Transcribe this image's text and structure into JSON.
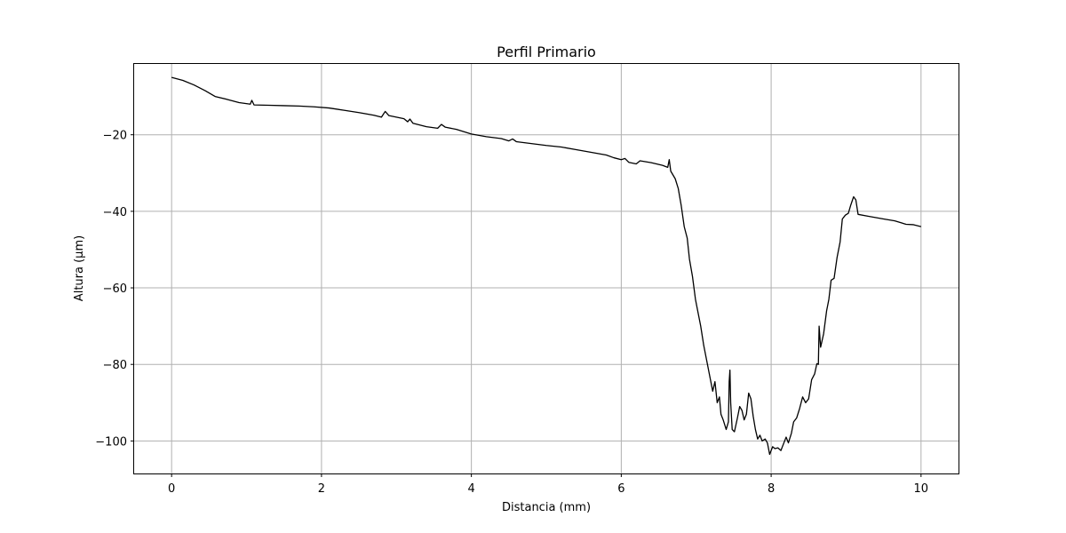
{
  "chart_data": {
    "type": "line",
    "title": "Perfil Primario",
    "xlabel": "Distancia (mm)",
    "ylabel": "Altura (µm)",
    "xlim": [
      -0.5,
      10.5
    ],
    "ylim": [
      -108.5,
      -1.5
    ],
    "xticks": [
      0,
      2,
      4,
      6,
      8,
      10
    ],
    "xtick_labels": [
      "0",
      "2",
      "4",
      "6",
      "8",
      "10"
    ],
    "yticks": [
      -20,
      -40,
      -60,
      -80,
      -100
    ],
    "ytick_labels": [
      "−20",
      "−40",
      "−60",
      "−80",
      "−100"
    ],
    "grid": true,
    "line_color": "#000000",
    "grid_color": "#b0b0b0",
    "series": [
      {
        "name": "",
        "points": [
          [
            0.0,
            -5.0
          ],
          [
            0.15,
            -5.8
          ],
          [
            0.3,
            -7.0
          ],
          [
            0.45,
            -8.5
          ],
          [
            0.58,
            -10.0
          ],
          [
            0.75,
            -10.8
          ],
          [
            0.9,
            -11.6
          ],
          [
            1.05,
            -12.0
          ],
          [
            1.07,
            -11.0
          ],
          [
            1.1,
            -12.2
          ],
          [
            1.3,
            -12.3
          ],
          [
            1.5,
            -12.4
          ],
          [
            1.7,
            -12.5
          ],
          [
            1.9,
            -12.7
          ],
          [
            2.1,
            -13.0
          ],
          [
            2.3,
            -13.6
          ],
          [
            2.5,
            -14.2
          ],
          [
            2.7,
            -14.9
          ],
          [
            2.8,
            -15.4
          ],
          [
            2.85,
            -13.9
          ],
          [
            2.9,
            -15.0
          ],
          [
            3.1,
            -15.8
          ],
          [
            3.15,
            -16.6
          ],
          [
            3.18,
            -15.9
          ],
          [
            3.22,
            -17.0
          ],
          [
            3.4,
            -17.9
          ],
          [
            3.55,
            -18.3
          ],
          [
            3.6,
            -17.3
          ],
          [
            3.65,
            -18.0
          ],
          [
            3.8,
            -18.6
          ],
          [
            4.0,
            -19.8
          ],
          [
            4.2,
            -20.5
          ],
          [
            4.4,
            -21.0
          ],
          [
            4.5,
            -21.6
          ],
          [
            4.55,
            -21.1
          ],
          [
            4.6,
            -21.8
          ],
          [
            4.8,
            -22.3
          ],
          [
            5.0,
            -22.8
          ],
          [
            5.2,
            -23.2
          ],
          [
            5.4,
            -23.9
          ],
          [
            5.6,
            -24.6
          ],
          [
            5.8,
            -25.3
          ],
          [
            5.9,
            -26.0
          ],
          [
            6.0,
            -26.5
          ],
          [
            6.05,
            -26.2
          ],
          [
            6.1,
            -27.2
          ],
          [
            6.2,
            -27.6
          ],
          [
            6.25,
            -26.8
          ],
          [
            6.4,
            -27.3
          ],
          [
            6.55,
            -28.0
          ],
          [
            6.62,
            -28.5
          ],
          [
            6.64,
            -26.5
          ],
          [
            6.66,
            -29.5
          ],
          [
            6.72,
            -31.5
          ],
          [
            6.76,
            -34.0
          ],
          [
            6.8,
            -38.5
          ],
          [
            6.84,
            -44.0
          ],
          [
            6.88,
            -47.0
          ],
          [
            6.91,
            -52.5
          ],
          [
            6.95,
            -57.0
          ],
          [
            6.99,
            -63.0
          ],
          [
            7.03,
            -67.0
          ],
          [
            7.06,
            -70.0
          ],
          [
            7.1,
            -75.0
          ],
          [
            7.14,
            -79.0
          ],
          [
            7.18,
            -83.0
          ],
          [
            7.22,
            -87.0
          ],
          [
            7.25,
            -84.5
          ],
          [
            7.28,
            -90.0
          ],
          [
            7.31,
            -88.5
          ],
          [
            7.33,
            -93.0
          ],
          [
            7.36,
            -94.5
          ],
          [
            7.4,
            -97.0
          ],
          [
            7.43,
            -95.0
          ],
          [
            7.44,
            -84.5
          ],
          [
            7.45,
            -81.5
          ],
          [
            7.46,
            -90.0
          ],
          [
            7.48,
            -97.0
          ],
          [
            7.51,
            -97.6
          ],
          [
            7.55,
            -94.0
          ],
          [
            7.58,
            -91.0
          ],
          [
            7.61,
            -92.0
          ],
          [
            7.64,
            -94.5
          ],
          [
            7.67,
            -93.0
          ],
          [
            7.7,
            -87.5
          ],
          [
            7.73,
            -89.0
          ],
          [
            7.76,
            -93.5
          ],
          [
            7.79,
            -97.0
          ],
          [
            7.82,
            -99.5
          ],
          [
            7.85,
            -98.5
          ],
          [
            7.88,
            -100.0
          ],
          [
            7.92,
            -99.5
          ],
          [
            7.95,
            -100.5
          ],
          [
            7.98,
            -103.5
          ],
          [
            8.02,
            -101.5
          ],
          [
            8.05,
            -102.0
          ],
          [
            8.09,
            -101.8
          ],
          [
            8.13,
            -102.5
          ],
          [
            8.16,
            -101.0
          ],
          [
            8.2,
            -99.0
          ],
          [
            8.23,
            -100.5
          ],
          [
            8.27,
            -98.0
          ],
          [
            8.3,
            -95.0
          ],
          [
            8.34,
            -94.0
          ],
          [
            8.38,
            -91.5
          ],
          [
            8.42,
            -88.5
          ],
          [
            8.46,
            -90.0
          ],
          [
            8.5,
            -89.0
          ],
          [
            8.54,
            -84.0
          ],
          [
            8.58,
            -82.5
          ],
          [
            8.61,
            -79.8
          ],
          [
            8.63,
            -80.0
          ],
          [
            8.64,
            -70.0
          ],
          [
            8.66,
            -75.5
          ],
          [
            8.7,
            -72.0
          ],
          [
            8.74,
            -66.0
          ],
          [
            8.77,
            -63.0
          ],
          [
            8.8,
            -58.0
          ],
          [
            8.84,
            -57.5
          ],
          [
            8.88,
            -52.0
          ],
          [
            8.92,
            -48.0
          ],
          [
            8.95,
            -42.0
          ],
          [
            8.99,
            -41.0
          ],
          [
            9.03,
            -40.5
          ],
          [
            9.06,
            -38.5
          ],
          [
            9.1,
            -36.2
          ],
          [
            9.13,
            -37.0
          ],
          [
            9.16,
            -40.8
          ],
          [
            9.3,
            -41.3
          ],
          [
            9.5,
            -42.0
          ],
          [
            9.65,
            -42.5
          ],
          [
            9.8,
            -43.4
          ],
          [
            9.9,
            -43.5
          ],
          [
            10.0,
            -44.0
          ]
        ]
      }
    ]
  }
}
